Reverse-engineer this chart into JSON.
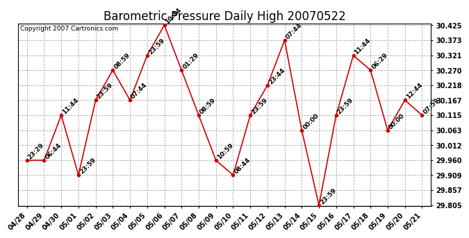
{
  "title": "Barometric Pressure Daily High 20070522",
  "copyright": "Copyright 2007 Cartronics.com",
  "x_labels": [
    "04/28",
    "04/29",
    "04/30",
    "05/01",
    "05/02",
    "05/03",
    "05/04",
    "05/05",
    "05/06",
    "05/07",
    "05/08",
    "05/09",
    "05/10",
    "05/11",
    "05/12",
    "05/13",
    "05/14",
    "05/15",
    "05/16",
    "05/17",
    "05/18",
    "05/19",
    "05/20",
    "05/21"
  ],
  "y_values": [
    29.96,
    29.96,
    30.115,
    29.909,
    30.167,
    30.27,
    30.167,
    30.321,
    30.425,
    30.27,
    30.115,
    29.96,
    29.909,
    30.115,
    30.218,
    30.373,
    30.063,
    29.805,
    30.115,
    30.321,
    30.27,
    30.063,
    30.167,
    30.115
  ],
  "time_labels": [
    "23:29",
    "06:44",
    "11:44",
    "23:59",
    "23:59",
    "08:59",
    "07:44",
    "23:59",
    "10:44",
    "01:29",
    "08:59",
    "10:59",
    "08:44",
    "23:59",
    "23:44",
    "07:44",
    "00:00",
    "23:59",
    "23:59",
    "11:44",
    "06:29",
    "00:00",
    "12:44",
    "07:59"
  ],
  "line_color": "#cc0000",
  "marker_color": "#cc0000",
  "bg_color": "#ffffff",
  "grid_color": "#aaaaaa",
  "title_fontsize": 12,
  "copyright_fontsize": 6.5,
  "label_fontsize": 6.5,
  "tick_fontsize": 7,
  "ylim_min": 29.805,
  "ylim_max": 30.425,
  "yticks": [
    30.425,
    30.373,
    30.321,
    30.27,
    30.218,
    30.167,
    30.115,
    30.063,
    30.012,
    29.96,
    29.909,
    29.857,
    29.805
  ]
}
